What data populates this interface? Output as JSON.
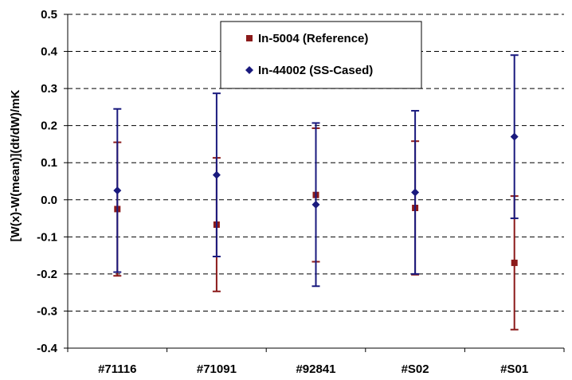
{
  "chart_data": {
    "type": "scatter",
    "ylabel": "[W(x)-W(mean)](dt/dW)/mK",
    "xlabel": "",
    "ylim": [
      -0.4,
      0.5
    ],
    "ytick_step": 0.1,
    "grid": "horizontal-dashed",
    "legend_position": "top-center",
    "categories": [
      "#71116",
      "#71091",
      "#92841",
      "#S02",
      "#S01"
    ],
    "series": [
      {
        "name": "In-5004 (Reference)",
        "marker": "square",
        "color": "#8B1A1A",
        "values": [
          -0.025,
          -0.067,
          0.013,
          -0.022,
          -0.17
        ],
        "error": [
          0.18,
          0.18,
          0.18,
          0.18,
          0.18
        ]
      },
      {
        "name": "In-44002 (SS-Cased)",
        "marker": "diamond",
        "color": "#1A1A7E",
        "values": [
          0.025,
          0.067,
          -0.013,
          0.02,
          0.17
        ],
        "error": [
          0.22,
          0.22,
          0.22,
          0.22,
          0.22
        ]
      }
    ]
  }
}
